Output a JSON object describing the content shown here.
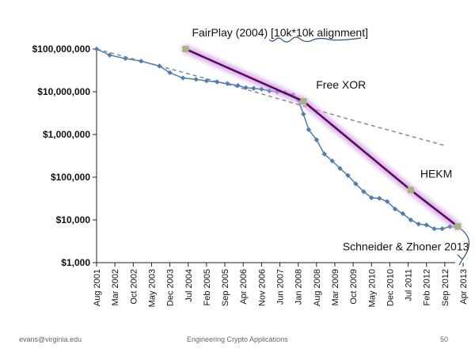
{
  "chart_data": {
    "type": "line",
    "y_scale": "log",
    "ylim": [
      1000,
      100000000
    ],
    "y_ticks": [
      {
        "value": 100000000,
        "label": "$100,000,000"
      },
      {
        "value": 10000000,
        "label": "$10,000,000"
      },
      {
        "value": 1000000,
        "label": "$1,000,000"
      },
      {
        "value": 100000,
        "label": "$100,000"
      },
      {
        "value": 10000,
        "label": "$10,000"
      },
      {
        "value": 1000,
        "label": "$1,000"
      }
    ],
    "xlim": [
      "2001-08",
      "2013-04"
    ],
    "x_ticks": [
      {
        "date": "2001-08",
        "label": "Aug 2001"
      },
      {
        "date": "2002-03",
        "label": "Mar 2002"
      },
      {
        "date": "2002-10",
        "label": "Oct 2002"
      },
      {
        "date": "2003-05",
        "label": "May 2003"
      },
      {
        "date": "2003-12",
        "label": "Dec 2003"
      },
      {
        "date": "2004-07",
        "label": "Jul 2004"
      },
      {
        "date": "2005-02",
        "label": "Feb 2005"
      },
      {
        "date": "2005-09",
        "label": "Sep 2005"
      },
      {
        "date": "2006-04",
        "label": "Apr 2006"
      },
      {
        "date": "2006-11",
        "label": "Nov 2006"
      },
      {
        "date": "2007-06",
        "label": "Jun 2007"
      },
      {
        "date": "2008-01",
        "label": "Jan 2008"
      },
      {
        "date": "2008-08",
        "label": "Aug 2008"
      },
      {
        "date": "2009-03",
        "label": "Mar 2009"
      },
      {
        "date": "2009-10",
        "label": "Oct 2009"
      },
      {
        "date": "2010-05",
        "label": "May 2010"
      },
      {
        "date": "2010-12",
        "label": "Dec 2010"
      },
      {
        "date": "2011-07",
        "label": "Jul 2011"
      },
      {
        "date": "2012-02",
        "label": "Feb 2012"
      },
      {
        "date": "2012-09",
        "label": "Sep 2012"
      },
      {
        "date": "2013-04",
        "label": "Apr 2013"
      }
    ],
    "grid": false,
    "series": [
      {
        "style": "blue-diamond-line",
        "color": "#4a7ebb",
        "points": [
          {
            "x": "2001-08",
            "y": 100000000
          },
          {
            "x": "2002-01",
            "y": 72000000
          },
          {
            "x": "2002-07",
            "y": 60000000
          },
          {
            "x": "2003-01",
            "y": 52000000
          },
          {
            "x": "2003-08",
            "y": 40000000
          },
          {
            "x": "2003-12",
            "y": 28000000
          },
          {
            "x": "2004-05",
            "y": 21000000
          },
          {
            "x": "2004-10",
            "y": 19500000
          },
          {
            "x": "2005-02",
            "y": 18000000
          },
          {
            "x": "2005-06",
            "y": 17000000
          },
          {
            "x": "2005-10",
            "y": 15500000
          },
          {
            "x": "2006-02",
            "y": 14000000
          },
          {
            "x": "2006-05",
            "y": 12500000
          },
          {
            "x": "2006-08",
            "y": 12000000
          },
          {
            "x": "2006-11",
            "y": 11500000
          },
          {
            "x": "2007-02",
            "y": 10500000
          },
          {
            "x": "2007-05",
            "y": 10000000
          },
          {
            "x": "2007-08",
            "y": 9500000
          },
          {
            "x": "2007-11",
            "y": 8500000
          },
          {
            "x": "2008-01",
            "y": 6500000
          },
          {
            "x": "2008-03",
            "y": 3000000
          },
          {
            "x": "2008-05",
            "y": 1300000
          },
          {
            "x": "2008-08",
            "y": 750000
          },
          {
            "x": "2008-11",
            "y": 350000
          },
          {
            "x": "2009-02",
            "y": 240000
          },
          {
            "x": "2009-05",
            "y": 160000
          },
          {
            "x": "2009-08",
            "y": 110000
          },
          {
            "x": "2009-11",
            "y": 70000
          },
          {
            "x": "2010-02",
            "y": 46000
          },
          {
            "x": "2010-05",
            "y": 33000
          },
          {
            "x": "2010-08",
            "y": 32000
          },
          {
            "x": "2010-11",
            "y": 27000
          },
          {
            "x": "2011-02",
            "y": 18000
          },
          {
            "x": "2011-05",
            "y": 14000
          },
          {
            "x": "2011-08",
            "y": 10000
          },
          {
            "x": "2011-11",
            "y": 8000
          },
          {
            "x": "2012-02",
            "y": 7600
          },
          {
            "x": "2012-05",
            "y": 6200
          },
          {
            "x": "2012-08",
            "y": 6200
          },
          {
            "x": "2012-11",
            "y": 7000
          },
          {
            "x": "2013-02",
            "y": 6800
          }
        ]
      },
      {
        "style": "gray-dashed-trend",
        "color": "#888888",
        "points": [
          {
            "x": "2001-08",
            "y": 100000000
          },
          {
            "x": "2006-06",
            "y": 11000000
          },
          {
            "x": "2009-06",
            "y": 2500000
          },
          {
            "x": "2012-09",
            "y": 550000
          }
        ]
      },
      {
        "style": "purple-highlight",
        "color": "#660066",
        "points": [
          {
            "x": "2004-06",
            "y": 100000000
          },
          {
            "x": "2008-03",
            "y": 6000000
          },
          {
            "x": "2011-08",
            "y": 50000
          },
          {
            "x": "2013-02",
            "y": 7000
          }
        ]
      }
    ],
    "annotations": [
      {
        "text": "FairPlay (2004) [10k*10k alignment]",
        "anchor": {
          "x": "2004-06",
          "y": 100000000
        }
      },
      {
        "text": "Free XOR",
        "anchor": {
          "x": "2008-03",
          "y": 6000000
        }
      },
      {
        "text": "HEKM",
        "anchor": {
          "x": "2011-08",
          "y": 50000
        }
      },
      {
        "text": "Schneider & Zhoner 2013",
        "anchor": {
          "x": "2013-02",
          "y": 7000
        }
      }
    ]
  },
  "footer": {
    "left": "evans@virginia.edu",
    "center": "Engineering Crypto Applications",
    "right": "50"
  }
}
